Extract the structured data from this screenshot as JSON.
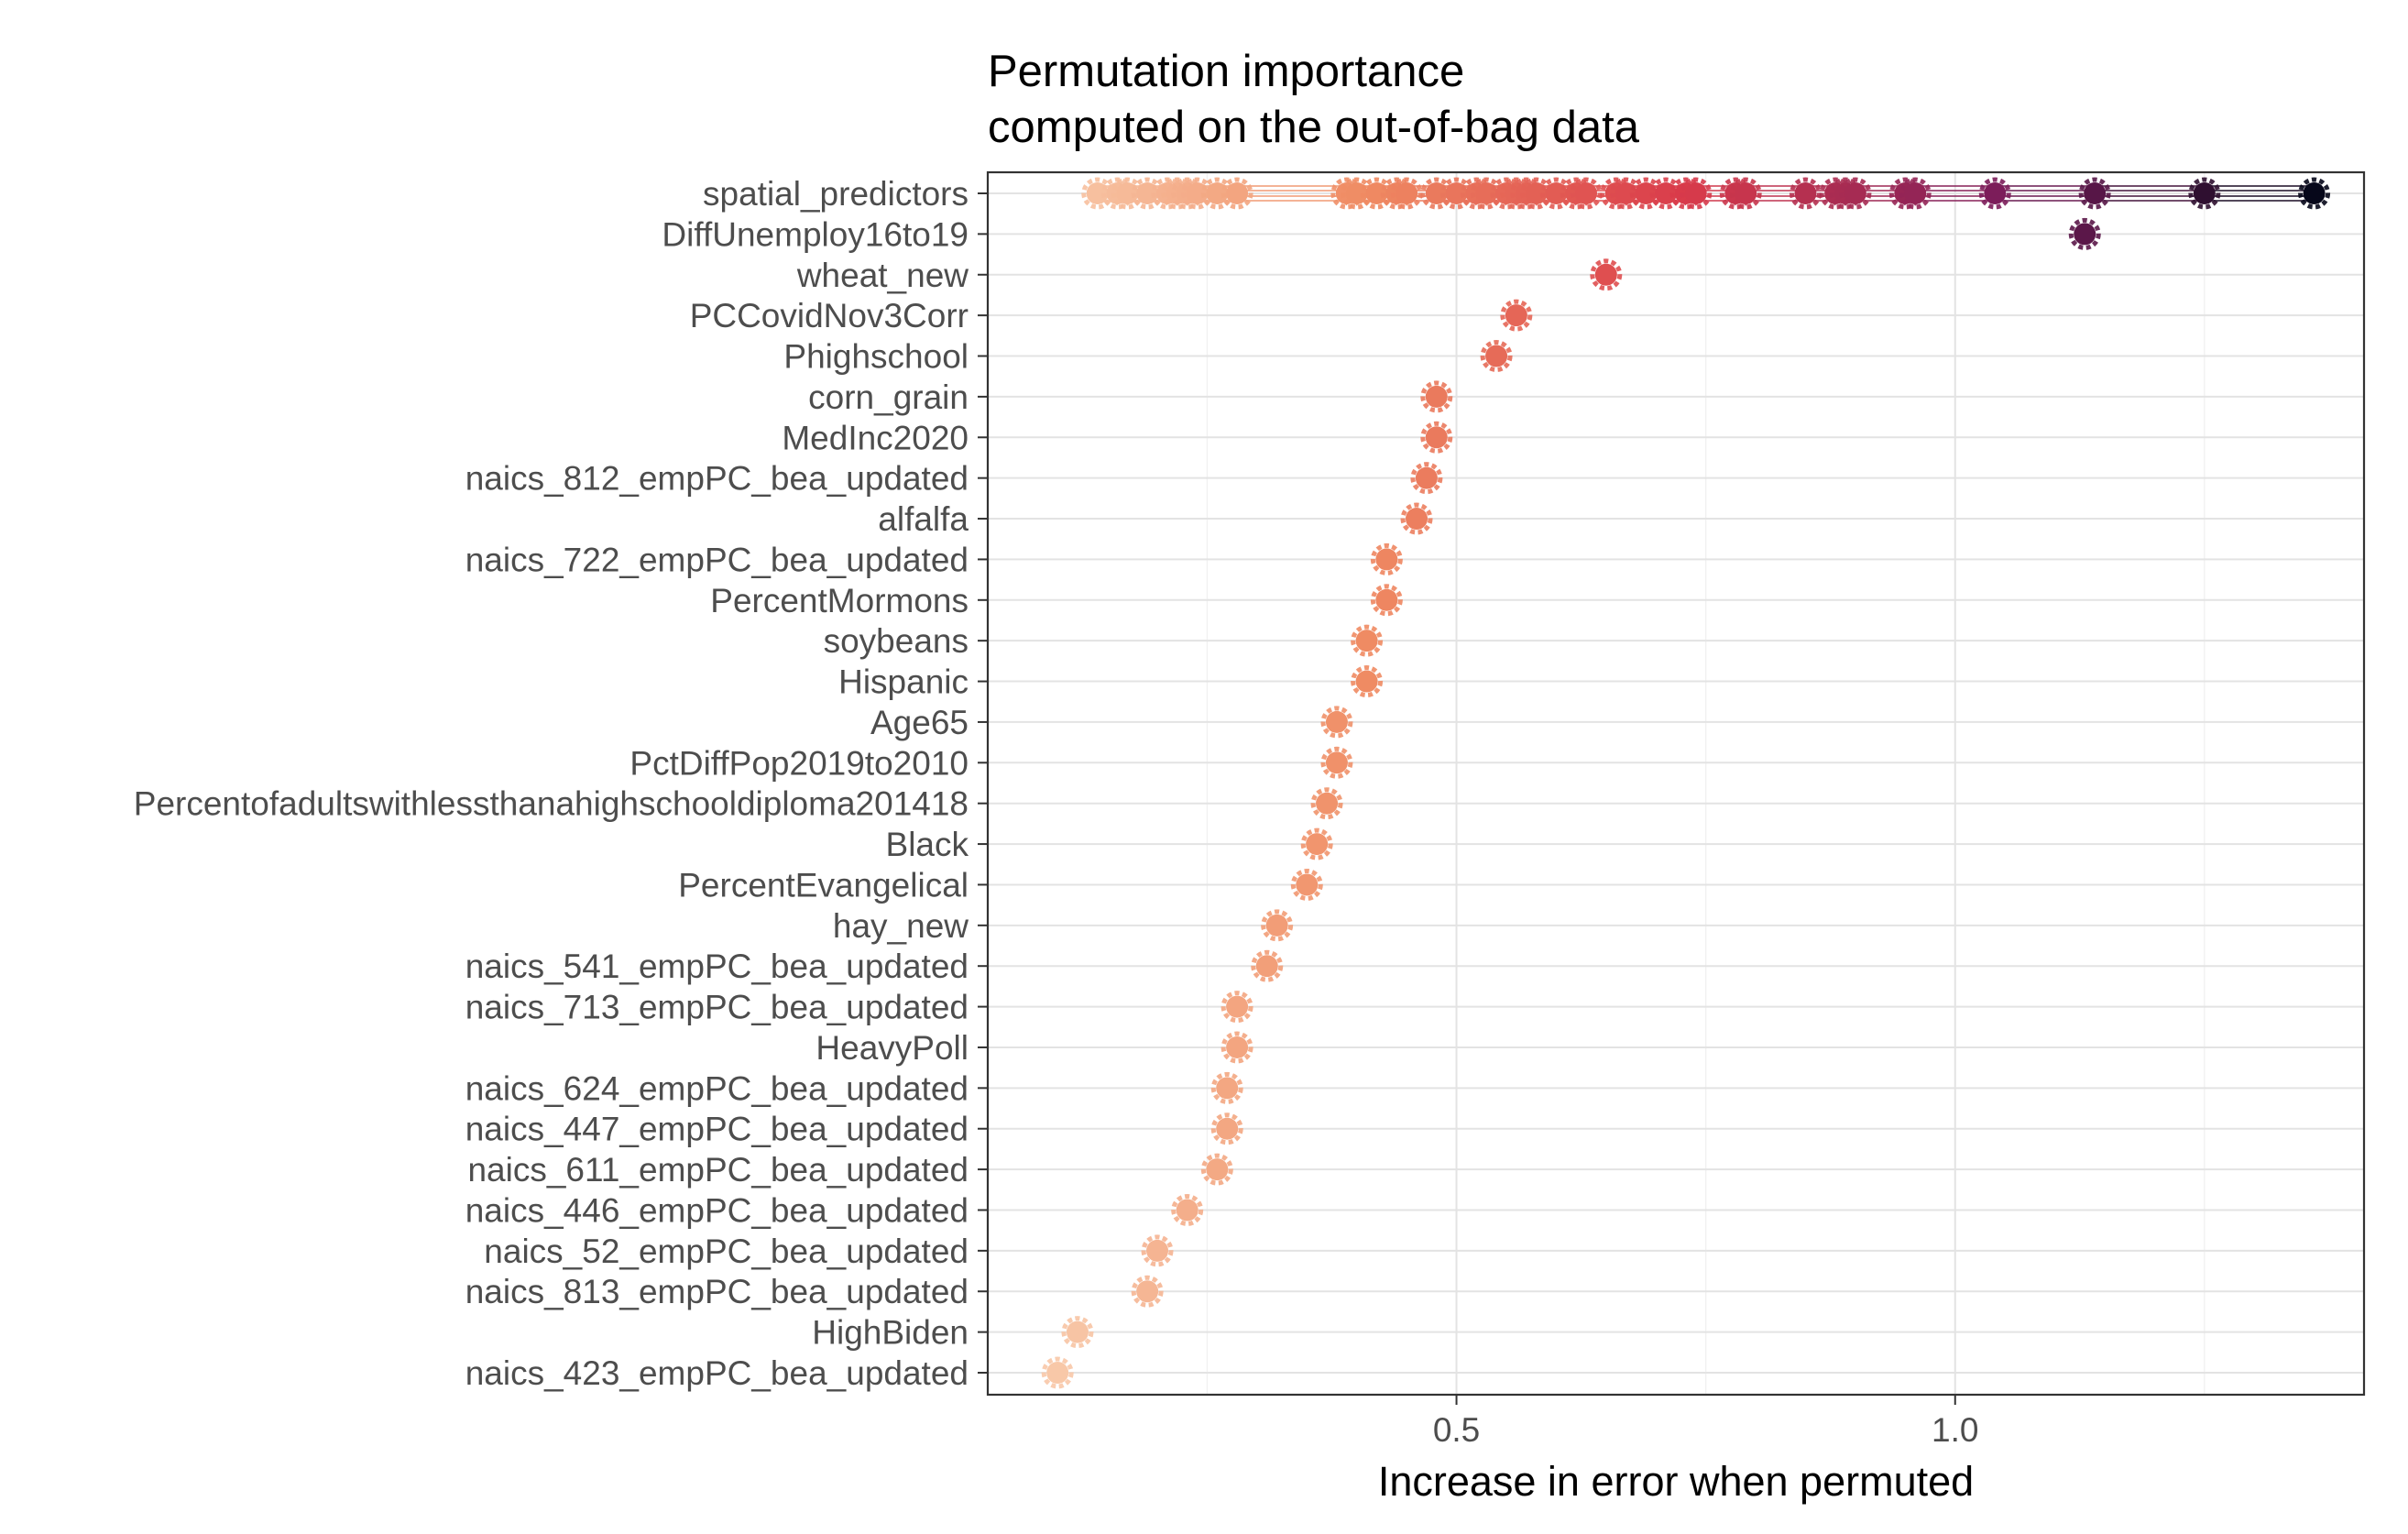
{
  "chart_data": {
    "type": "scatter",
    "title": [
      "Permutation importance",
      "computed on the out-of-bag data"
    ],
    "xlabel": "Increase in error when permuted",
    "ylabel": "",
    "xlim": [
      0.03,
      1.41
    ],
    "xticks": [
      0.5,
      1.0
    ],
    "xtick_labels": [
      "0.5",
      "1.0"
    ],
    "grid": true,
    "legend": "none",
    "categories": [
      "spatial_predictors",
      "DiffUnemploy16to19",
      "wheat_new",
      "PCCovidNov3Corr",
      "Phighschool",
      "corn_grain",
      "MedInc2020",
      "naics_812_empPC_bea_updated",
      "alfalfa",
      "naics_722_empPC_bea_updated",
      "PercentMormons",
      "soybeans",
      "Hispanic",
      "Age65",
      "PctDiffPop2019to2010",
      "Percentofadultswithlessthanahighschooldiploma201418",
      "Black",
      "PercentEvangelical",
      "hay_new",
      "naics_541_empPC_bea_updated",
      "naics_713_empPC_bea_updated",
      "HeavyPoll",
      "naics_624_empPC_bea_updated",
      "naics_447_empPC_bea_updated",
      "naics_611_empPC_bea_updated",
      "naics_446_empPC_bea_updated",
      "naics_52_empPC_bea_updated",
      "naics_813_empPC_bea_updated",
      "HighBiden",
      "naics_423_empPC_bea_updated"
    ],
    "values": [
      null,
      1.13,
      0.65,
      0.56,
      0.54,
      0.48,
      0.48,
      0.47,
      0.46,
      0.43,
      0.43,
      0.41,
      0.41,
      0.38,
      0.38,
      0.37,
      0.36,
      0.35,
      0.32,
      0.31,
      0.28,
      0.28,
      0.27,
      0.27,
      0.26,
      0.23,
      0.2,
      0.19,
      0.12,
      0.1
    ],
    "spatial_predictors_values": [
      0.14,
      0.16,
      0.17,
      0.19,
      0.21,
      0.22,
      0.23,
      0.24,
      0.26,
      0.28,
      0.39,
      0.4,
      0.42,
      0.44,
      0.45,
      0.48,
      0.5,
      0.52,
      0.53,
      0.55,
      0.56,
      0.57,
      0.58,
      0.6,
      0.62,
      0.63,
      0.66,
      0.67,
      0.69,
      0.71,
      0.73,
      0.74,
      0.78,
      0.79,
      0.85,
      0.88,
      0.89,
      0.9,
      0.95,
      0.96,
      1.04,
      1.14,
      1.25,
      1.36
    ],
    "color_scale": {
      "low": "#f8c8a8",
      "mid_low": "#ef8a62",
      "mid": "#d93b4a",
      "mid_high": "#7a1d5a",
      "high": "#06071a"
    }
  }
}
